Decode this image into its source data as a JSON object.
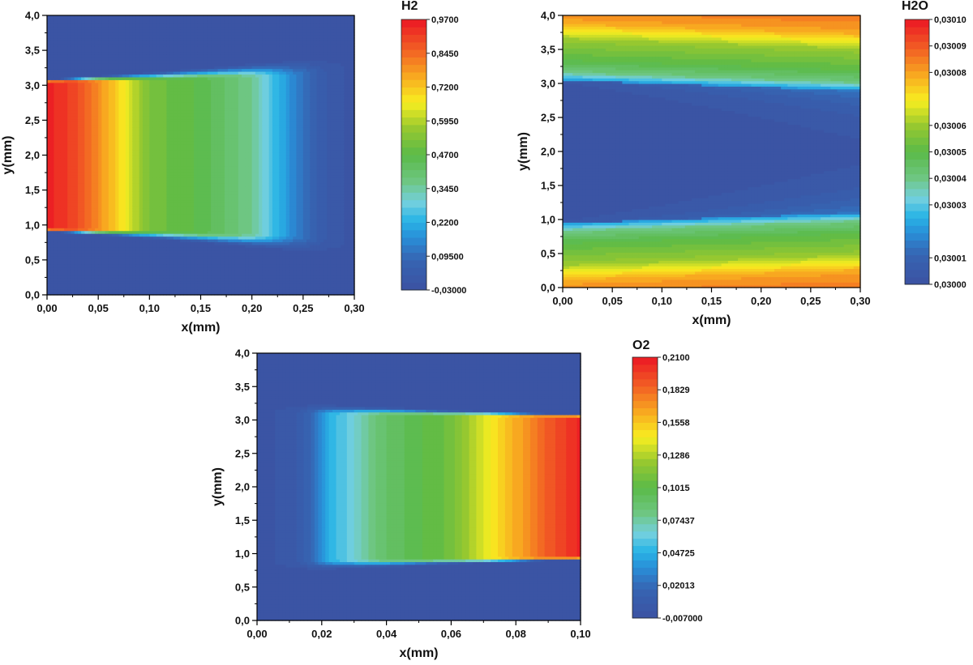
{
  "chart_data": [
    {
      "type": "heatmap",
      "title": "H2",
      "xlabel": "x(mm)",
      "ylabel": "y(mm)",
      "xlim": [
        0.0,
        0.3
      ],
      "ylim": [
        0.0,
        4.0
      ],
      "x_ticks": [
        "0,00",
        "0,05",
        "0,10",
        "0,15",
        "0,20",
        "0,25",
        "0,30"
      ],
      "x_tick_values": [
        0.0,
        0.05,
        0.1,
        0.15,
        0.2,
        0.25,
        0.3
      ],
      "y_ticks": [
        "0,0",
        "0,5",
        "1,0",
        "1,5",
        "2,0",
        "2,5",
        "3,0",
        "3,5",
        "4,0"
      ],
      "y_tick_values": [
        0.0,
        0.5,
        1.0,
        1.5,
        2.0,
        2.5,
        3.0,
        3.5,
        4.0
      ],
      "colorbar": {
        "min": -0.03,
        "max": 0.97,
        "labels": [
          "0,9700",
          "0,8450",
          "0,7200",
          "0,5950",
          "0,4700",
          "0,3450",
          "0,2200",
          "0,09500",
          "-0,03000"
        ],
        "label_values": [
          0.97,
          0.845,
          0.72,
          0.595,
          0.47,
          0.345,
          0.22,
          0.095,
          -0.03
        ]
      },
      "field": {
        "pattern": "decay_from_left",
        "band_y": [
          0.95,
          3.05
        ],
        "diffusion_width": 0.12,
        "profile": [
          [
            0.0,
            0.97
          ],
          [
            0.03,
            0.9
          ],
          [
            0.06,
            0.76
          ],
          [
            0.08,
            0.64
          ],
          [
            0.1,
            0.52
          ],
          [
            0.15,
            0.46
          ],
          [
            0.2,
            0.36
          ],
          [
            0.22,
            0.25
          ],
          [
            0.24,
            0.14
          ],
          [
            0.27,
            0.02
          ],
          [
            0.3,
            -0.03
          ]
        ]
      }
    },
    {
      "type": "heatmap",
      "title": "H2O",
      "xlabel": "x(mm)",
      "ylabel": "y(mm)",
      "xlim": [
        0.0,
        0.3
      ],
      "ylim": [
        0.0,
        4.0
      ],
      "x_ticks": [
        "0,00",
        "0,05",
        "0,10",
        "0,15",
        "0,20",
        "0,25",
        "0,30"
      ],
      "x_tick_values": [
        0.0,
        0.05,
        0.1,
        0.15,
        0.2,
        0.25,
        0.3
      ],
      "y_ticks": [
        "0,0",
        "0,5",
        "1,0",
        "1,5",
        "2,0",
        "2,5",
        "3,0",
        "3,5",
        "4,0"
      ],
      "y_tick_values": [
        0.0,
        0.5,
        1.0,
        1.5,
        2.0,
        2.5,
        3.0,
        3.5,
        4.0
      ],
      "colorbar": {
        "min": 0.03,
        "max": 0.0301,
        "labels": [
          "0,03010",
          "0,03009",
          "0,03008",
          "0,03006",
          "0,03005",
          "0,03004",
          "0,03003",
          "0,03001",
          "0,03000"
        ],
        "label_values": [
          0.0301,
          0.03009,
          0.03008,
          0.03006,
          0.03005,
          0.03004,
          0.03003,
          0.03001,
          0.03
        ]
      },
      "field": {
        "pattern": "outer_bands",
        "upper_edge": [
          [
            0.0,
            3.05
          ],
          [
            0.3,
            2.9
          ]
        ],
        "lower_edge": [
          [
            0.0,
            0.95
          ],
          [
            0.3,
            1.1
          ]
        ],
        "outer_profile": [
          [
            0.0,
            0.03002
          ],
          [
            0.12,
            0.03004
          ],
          [
            0.3,
            0.03005
          ],
          [
            0.6,
            0.03006
          ],
          [
            0.85,
            0.03008
          ],
          [
            1.2,
            0.03009
          ],
          [
            1.6,
            0.0301
          ]
        ]
      }
    },
    {
      "type": "heatmap",
      "title": "O2",
      "xlabel": "x(mm)",
      "ylabel": "y(mm)",
      "xlim": [
        0.0,
        0.1
      ],
      "ylim": [
        0.0,
        4.0
      ],
      "x_ticks": [
        "0,00",
        "0,02",
        "0,04",
        "0,06",
        "0,08",
        "0,10"
      ],
      "x_tick_values": [
        0.0,
        0.02,
        0.04,
        0.06,
        0.08,
        0.1
      ],
      "y_ticks": [
        "0,0",
        "0,5",
        "1,0",
        "1,5",
        "2,0",
        "2,5",
        "3,0",
        "3,5",
        "4,0"
      ],
      "y_tick_values": [
        0.0,
        0.5,
        1.0,
        1.5,
        2.0,
        2.5,
        3.0,
        3.5,
        4.0
      ],
      "colorbar": {
        "min": -0.007,
        "max": 0.21,
        "labels": [
          "0,2100",
          "0,1829",
          "0,1558",
          "0,1286",
          "0,1015",
          "0,07437",
          "0,04725",
          "0,02013",
          "-0,007000"
        ],
        "label_values": [
          0.21,
          0.1829,
          0.1558,
          0.1286,
          0.1015,
          0.07437,
          0.04725,
          0.02013,
          -0.007
        ]
      },
      "field": {
        "pattern": "growth_to_right",
        "band_y": [
          0.95,
          3.05
        ],
        "diffusion_width": 0.1,
        "profile": [
          [
            0.0,
            -0.007
          ],
          [
            0.012,
            0.0
          ],
          [
            0.018,
            0.02
          ],
          [
            0.022,
            0.045
          ],
          [
            0.03,
            0.065
          ],
          [
            0.04,
            0.09
          ],
          [
            0.06,
            0.11
          ],
          [
            0.07,
            0.14
          ],
          [
            0.08,
            0.165
          ],
          [
            0.09,
            0.19
          ],
          [
            0.1,
            0.21
          ]
        ]
      }
    }
  ]
}
